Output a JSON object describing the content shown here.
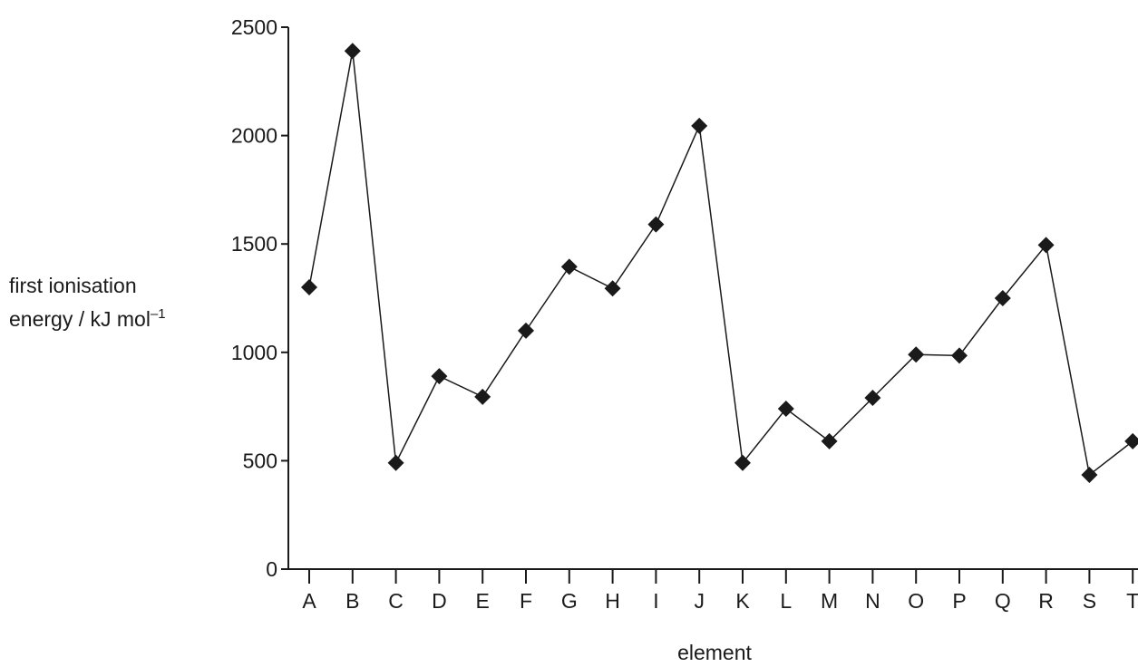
{
  "chart_data": {
    "type": "line",
    "xlabel": "element",
    "ylabel_line1": "first ionisation",
    "ylabel_line2_prefix": "energy / kJ mol",
    "ylabel_superscript": "–1",
    "categories": [
      "A",
      "B",
      "C",
      "D",
      "E",
      "F",
      "G",
      "H",
      "I",
      "J",
      "K",
      "L",
      "M",
      "N",
      "O",
      "P",
      "Q",
      "R",
      "S",
      "T"
    ],
    "values": [
      1300,
      2390,
      490,
      890,
      795,
      1100,
      1395,
      1295,
      1590,
      2045,
      490,
      740,
      590,
      790,
      990,
      985,
      1250,
      1495,
      435,
      590
    ],
    "ylim": [
      0,
      2500
    ],
    "yticks": [
      0,
      500,
      1000,
      1500,
      2000,
      2500
    ],
    "marker": "diamond",
    "legend": "none",
    "grid": false,
    "colors": {
      "line": "#1a1a1a",
      "marker": "#1a1a1a"
    }
  }
}
